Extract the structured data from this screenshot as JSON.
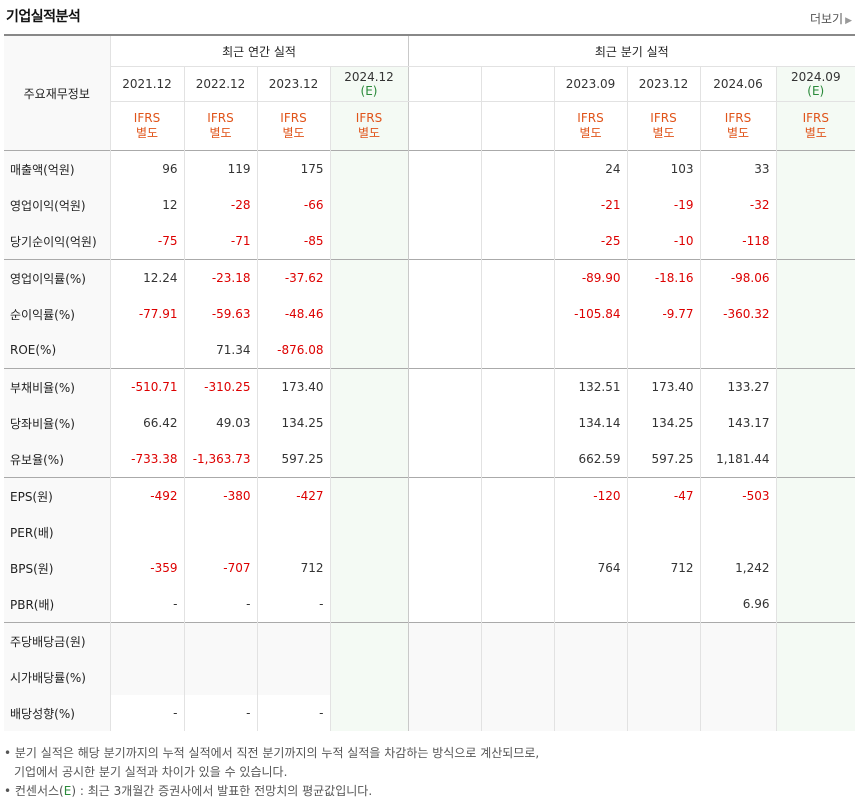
{
  "header": {
    "title": "기업실적분석",
    "more": "더보기"
  },
  "table": {
    "corner_label": "주요재무정보",
    "annual_group": "최근 연간 실적",
    "quarter_group": "최근 분기 실적",
    "annual_dates": [
      {
        "year": "2021.12",
        "est": ""
      },
      {
        "year": "2022.12",
        "est": ""
      },
      {
        "year": "2023.12",
        "est": ""
      },
      {
        "year": "2024.12",
        "est": "(E)"
      }
    ],
    "quarter_dates": [
      {
        "year": "",
        "est": ""
      },
      {
        "year": "",
        "est": ""
      },
      {
        "year": "2023.09",
        "est": ""
      },
      {
        "year": "2023.12",
        "est": ""
      },
      {
        "year": "2024.06",
        "est": ""
      },
      {
        "year": "2024.09",
        "est": "(E)"
      }
    ],
    "ifrs_line1": "IFRS",
    "ifrs_line2": "별도",
    "rows": [
      {
        "label": "매출액(억원)",
        "annual": [
          "96",
          "119",
          "175",
          ""
        ],
        "quarter": [
          "",
          "",
          "24",
          "103",
          "33",
          ""
        ]
      },
      {
        "label": "영업이익(억원)",
        "annual": [
          "12",
          "-28",
          "-66",
          ""
        ],
        "quarter": [
          "",
          "",
          "-21",
          "-19",
          "-32",
          ""
        ]
      },
      {
        "label": "당기순이익(억원)",
        "annual": [
          "-75",
          "-71",
          "-85",
          ""
        ],
        "quarter": [
          "",
          "",
          "-25",
          "-10",
          "-118",
          ""
        ]
      },
      {
        "label": "영업이익률(%)",
        "annual": [
          "12.24",
          "-23.18",
          "-37.62",
          ""
        ],
        "quarter": [
          "",
          "",
          "-89.90",
          "-18.16",
          "-98.06",
          ""
        ]
      },
      {
        "label": "순이익률(%)",
        "annual": [
          "-77.91",
          "-59.63",
          "-48.46",
          ""
        ],
        "quarter": [
          "",
          "",
          "-105.84",
          "-9.77",
          "-360.32",
          ""
        ]
      },
      {
        "label": "ROE(%)",
        "annual": [
          "",
          "71.34",
          "-876.08",
          ""
        ],
        "quarter": [
          "",
          "",
          "",
          "",
          "",
          ""
        ]
      },
      {
        "label": "부채비율(%)",
        "annual": [
          "-510.71",
          "-310.25",
          "173.40",
          ""
        ],
        "quarter": [
          "",
          "",
          "132.51",
          "173.40",
          "133.27",
          ""
        ]
      },
      {
        "label": "당좌비율(%)",
        "annual": [
          "66.42",
          "49.03",
          "134.25",
          ""
        ],
        "quarter": [
          "",
          "",
          "134.14",
          "134.25",
          "143.17",
          ""
        ]
      },
      {
        "label": "유보율(%)",
        "annual": [
          "-733.38",
          "-1,363.73",
          "597.25",
          ""
        ],
        "quarter": [
          "",
          "",
          "662.59",
          "597.25",
          "1,181.44",
          ""
        ]
      },
      {
        "label": "EPS(원)",
        "annual": [
          "-492",
          "-380",
          "-427",
          ""
        ],
        "quarter": [
          "",
          "",
          "-120",
          "-47",
          "-503",
          ""
        ]
      },
      {
        "label": "PER(배)",
        "annual": [
          "",
          "",
          "",
          ""
        ],
        "quarter": [
          "",
          "",
          "",
          "",
          "",
          ""
        ]
      },
      {
        "label": "BPS(원)",
        "annual": [
          "-359",
          "-707",
          "712",
          ""
        ],
        "quarter": [
          "",
          "",
          "764",
          "712",
          "1,242",
          ""
        ]
      },
      {
        "label": "PBR(배)",
        "annual": [
          "-",
          "-",
          "-",
          ""
        ],
        "quarter": [
          "",
          "",
          "",
          "",
          "6.96",
          ""
        ]
      },
      {
        "label": "주당배당금(원)",
        "annual": [
          "",
          "",
          "",
          ""
        ],
        "quarter": [
          "",
          "",
          "",
          "",
          "",
          ""
        ]
      },
      {
        "label": "시가배당률(%)",
        "annual": [
          "",
          "",
          "",
          ""
        ],
        "quarter": [
          "",
          "",
          "",
          "",
          "",
          ""
        ]
      },
      {
        "label": "배당성향(%)",
        "annual": [
          "-",
          "-",
          "-",
          ""
        ],
        "quarter": [
          "",
          "",
          "",
          "",
          "",
          ""
        ]
      }
    ]
  },
  "notes": {
    "line1": "• 분기 실적은 해당 분기까지의 누적 실적에서 직전 분기까지의 누적 실적을 차감하는 방식으로 계산되므로,",
    "line2": "  기업에서 공시한 분기 실적과 차이가 있을 수 있습니다.",
    "line3_a": "• 컨센서스(",
    "line3_e": "E",
    "line3_b": ") : 최근 3개월간 증권사에서 발표한 전망치의 평균값입니다."
  },
  "colors": {
    "negative": "#dd0000",
    "ifrs": "#e0541a",
    "estimate": "#2a8a3a"
  }
}
